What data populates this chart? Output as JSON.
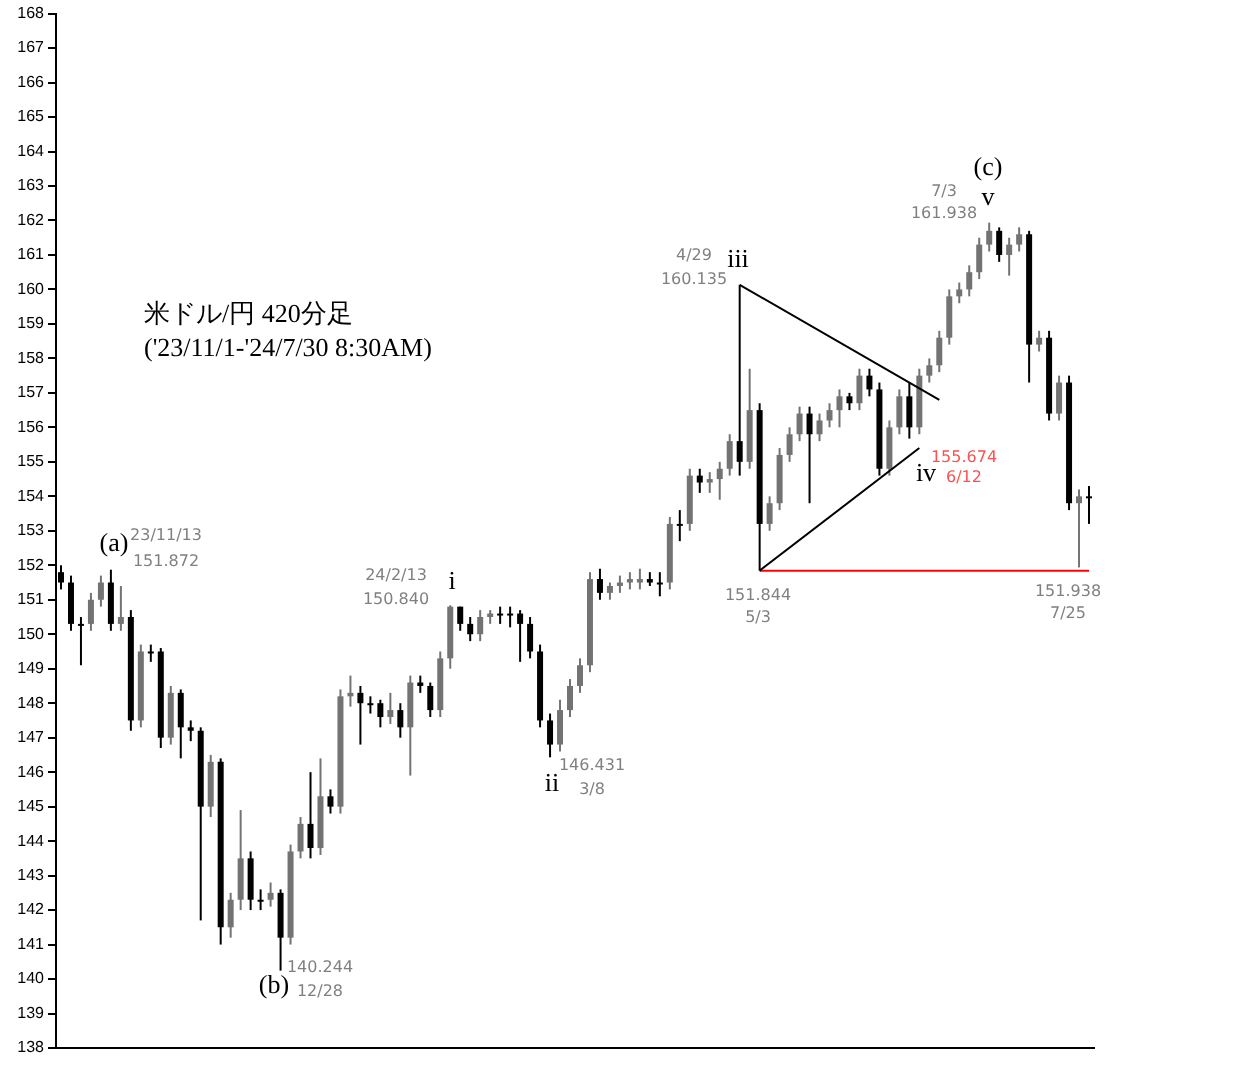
{
  "chart_data": {
    "type": "candlestick",
    "title": "米ドル/円 420分足",
    "subtitle": "('23/11/1-'24/7/30 8:30AM)",
    "colors": [
      "#000000",
      "#000000",
      "#000000",
      "#737373",
      "#737373",
      "#000000",
      "#737373",
      "#000000",
      "#737373",
      "#000000",
      "#000000",
      "#737373",
      "#000000",
      "#000000",
      "#000000",
      "#737373",
      "#000000",
      "#737373",
      "#737373",
      "#000000",
      "#000000",
      "#737373",
      "#000000",
      "#737373",
      "#737373",
      "#000000",
      "#737373",
      "#000000",
      "#737373",
      "#737373",
      "#000000",
      "#000000",
      "#000000",
      "#737373",
      "#000000",
      "#737373",
      "#000000",
      "#000000",
      "#737373",
      "#737373",
      "#000000",
      "#000000",
      "#737373",
      "#737373",
      "#000000",
      "#000000",
      "#000000",
      "#000000",
      "#000000",
      "#000000",
      "#737373",
      "#737373",
      "#737373",
      "#737373",
      "#000000",
      "#737373",
      "#737373",
      "#737373",
      "#737373",
      "#000000",
      "#000000",
      "#737373",
      "#000000",
      "#737373",
      "#000000",
      "#737373",
      "#737373",
      "#737373",
      "#000000",
      "#737373",
      "#000000",
      "#737373",
      "#737373",
      "#737373",
      "#737373",
      "#000000",
      "#737373",
      "#737373",
      "#737373",
      "#000000",
      "#737373",
      "#000000",
      "#000000",
      "#737373",
      "#737373",
      "#000000",
      "#737373",
      "#737373",
      "#737373",
      "#737373",
      "#737373",
      "#737373",
      "#737373",
      "#737373",
      "#000000",
      "#737373",
      "#737373",
      "#000000",
      "#737373",
      "#000000",
      "#737373",
      "#000000",
      "#737373",
      "#000000"
    ],
    "categories": [
      null,
      null,
      null,
      null,
      null,
      null,
      null,
      null,
      null,
      null,
      null,
      null,
      null,
      null,
      null,
      null,
      null,
      null,
      null,
      null,
      null,
      null,
      null,
      null,
      null,
      null,
      null,
      null,
      null,
      null,
      null,
      null,
      null,
      null,
      null,
      null,
      null,
      null,
      null,
      null,
      null,
      null,
      null,
      null,
      null,
      null,
      null,
      null,
      null,
      null,
      null,
      null,
      null,
      null,
      null,
      null,
      null,
      null,
      null,
      null,
      null,
      null,
      null,
      null,
      null,
      null,
      null,
      null,
      null,
      null,
      null,
      null,
      null,
      null,
      null,
      null,
      null,
      null,
      null,
      null,
      null,
      null,
      null,
      null,
      null,
      null,
      null,
      null,
      null,
      null,
      null,
      null,
      null,
      null,
      null,
      null,
      null,
      null,
      null,
      null,
      null,
      null,
      null,
      null
    ],
    "ohlc": [
      [
        151.8,
        152.0,
        151.3,
        151.5
      ],
      [
        151.5,
        151.7,
        150.1,
        150.3
      ],
      [
        150.3,
        150.5,
        149.1,
        150.3
      ],
      [
        150.3,
        151.2,
        150.1,
        151.0
      ],
      [
        151.0,
        151.7,
        150.8,
        151.5
      ],
      [
        151.5,
        151.872,
        150.1,
        150.3
      ],
      [
        150.3,
        151.4,
        150.1,
        150.5
      ],
      [
        150.5,
        150.7,
        147.2,
        147.5
      ],
      [
        147.5,
        149.7,
        147.3,
        149.5
      ],
      [
        149.5,
        149.7,
        149.2,
        149.5
      ],
      [
        149.5,
        149.6,
        146.7,
        147.0
      ],
      [
        147.0,
        148.5,
        146.8,
        148.3
      ],
      [
        148.3,
        148.4,
        146.4,
        147.3
      ],
      [
        147.3,
        147.5,
        146.9,
        147.2
      ],
      [
        147.2,
        147.3,
        141.7,
        145.0
      ],
      [
        145.0,
        146.5,
        144.7,
        146.3
      ],
      [
        146.3,
        146.4,
        141.0,
        141.5
      ],
      [
        141.5,
        142.5,
        141.2,
        142.3
      ],
      [
        142.3,
        144.9,
        142.0,
        143.5
      ],
      [
        143.5,
        143.7,
        142.0,
        142.3
      ],
      [
        142.3,
        142.6,
        142.0,
        142.3
      ],
      [
        142.3,
        142.8,
        142.1,
        142.5
      ],
      [
        142.5,
        142.6,
        140.244,
        141.2
      ],
      [
        141.2,
        143.9,
        141.0,
        143.7
      ],
      [
        143.7,
        144.7,
        143.5,
        144.5
      ],
      [
        144.5,
        146.0,
        143.5,
        143.8
      ],
      [
        143.8,
        146.4,
        143.6,
        145.3
      ],
      [
        145.3,
        145.5,
        144.8,
        145.0
      ],
      [
        145.0,
        148.4,
        144.8,
        148.2
      ],
      [
        148.2,
        148.8,
        147.9,
        148.3
      ],
      [
        148.3,
        148.5,
        146.8,
        148.0
      ],
      [
        148.0,
        148.2,
        147.7,
        148.0
      ],
      [
        148.0,
        148.1,
        147.3,
        147.6
      ],
      [
        147.6,
        148.3,
        147.4,
        147.8
      ],
      [
        147.8,
        148.0,
        147.0,
        147.3
      ],
      [
        147.3,
        148.8,
        145.9,
        148.6
      ],
      [
        148.6,
        148.8,
        148.3,
        148.5
      ],
      [
        148.5,
        148.6,
        147.6,
        147.8
      ],
      [
        147.8,
        149.5,
        147.6,
        149.3
      ],
      [
        149.3,
        150.84,
        149.0,
        150.8
      ],
      [
        150.8,
        150.8,
        150.1,
        150.3
      ],
      [
        150.3,
        150.5,
        149.8,
        150.0
      ],
      [
        150.0,
        150.7,
        149.8,
        150.5
      ],
      [
        150.5,
        150.7,
        150.3,
        150.6
      ],
      [
        150.6,
        150.8,
        150.3,
        150.6
      ],
      [
        150.6,
        150.8,
        150.2,
        150.6
      ],
      [
        150.6,
        150.7,
        149.2,
        150.3
      ],
      [
        150.3,
        150.5,
        149.3,
        149.5
      ],
      [
        149.5,
        149.7,
        147.3,
        147.5
      ],
      [
        147.5,
        147.7,
        146.431,
        146.8
      ],
      [
        146.8,
        148.1,
        146.6,
        147.8
      ],
      [
        147.8,
        148.7,
        147.6,
        148.5
      ],
      [
        148.5,
        149.3,
        148.3,
        149.1
      ],
      [
        149.1,
        151.8,
        148.9,
        151.6
      ],
      [
        151.6,
        151.9,
        151.0,
        151.2
      ],
      [
        151.2,
        151.5,
        151.0,
        151.4
      ],
      [
        151.4,
        151.7,
        151.2,
        151.5
      ],
      [
        151.5,
        151.8,
        151.3,
        151.6
      ],
      [
        151.5,
        151.9,
        151.3,
        151.6
      ],
      [
        151.6,
        151.8,
        151.4,
        151.5
      ],
      [
        151.5,
        151.8,
        151.1,
        151.5
      ],
      [
        151.5,
        153.4,
        151.3,
        153.2
      ],
      [
        153.2,
        153.6,
        152.7,
        153.2
      ],
      [
        153.2,
        154.8,
        153.0,
        154.6
      ],
      [
        154.6,
        154.8,
        154.1,
        154.4
      ],
      [
        154.4,
        154.7,
        154.1,
        154.5
      ],
      [
        154.5,
        155.0,
        153.9,
        154.8
      ],
      [
        154.8,
        155.8,
        154.6,
        155.6
      ],
      [
        155.6,
        160.135,
        154.6,
        155.0
      ],
      [
        155.0,
        157.7,
        154.8,
        156.5
      ],
      [
        156.5,
        156.7,
        151.844,
        153.2
      ],
      [
        153.2,
        154.0,
        153.0,
        153.8
      ],
      [
        153.8,
        155.4,
        153.6,
        155.2
      ],
      [
        155.2,
        156.0,
        155.0,
        155.8
      ],
      [
        155.8,
        156.6,
        155.6,
        156.4
      ],
      [
        156.4,
        156.6,
        153.8,
        155.8
      ],
      [
        155.8,
        156.4,
        155.6,
        156.2
      ],
      [
        156.2,
        156.7,
        156.0,
        156.5
      ],
      [
        156.5,
        157.1,
        156.0,
        156.9
      ],
      [
        156.9,
        157.0,
        156.5,
        156.7
      ],
      [
        156.7,
        157.7,
        156.5,
        157.5
      ],
      [
        157.5,
        157.7,
        156.9,
        157.1
      ],
      [
        157.1,
        157.3,
        154.6,
        154.8
      ],
      [
        154.8,
        156.2,
        154.6,
        156.0
      ],
      [
        156.0,
        157.1,
        155.8,
        156.9
      ],
      [
        156.9,
        157.3,
        155.674,
        156.0
      ],
      [
        156.0,
        157.7,
        155.8,
        157.5
      ],
      [
        157.5,
        158.0,
        157.3,
        157.8
      ],
      [
        157.8,
        158.8,
        157.6,
        158.6
      ],
      [
        158.6,
        160.0,
        158.4,
        159.8
      ],
      [
        159.8,
        160.2,
        159.6,
        160.0
      ],
      [
        160.0,
        160.7,
        159.8,
        160.5
      ],
      [
        160.5,
        161.5,
        160.3,
        161.3
      ],
      [
        161.3,
        161.938,
        161.1,
        161.7
      ],
      [
        161.7,
        161.8,
        160.8,
        161.0
      ],
      [
        161.0,
        161.5,
        160.4,
        161.3
      ],
      [
        161.3,
        161.8,
        161.1,
        161.6
      ],
      [
        161.6,
        161.7,
        157.3,
        158.4
      ],
      [
        158.4,
        158.8,
        158.2,
        158.6
      ],
      [
        158.6,
        158.8,
        156.2,
        156.4
      ],
      [
        156.4,
        157.5,
        156.2,
        157.3
      ],
      [
        157.3,
        157.5,
        153.6,
        153.8
      ],
      [
        153.8,
        154.2,
        151.938,
        154.0
      ],
      [
        154.0,
        154.3,
        153.2,
        154.0
      ]
    ],
    "series": [
      {
        "type": "line",
        "values": [
          null,
          null,
          null,
          null,
          null,
          null,
          null,
          null,
          null,
          null,
          null,
          null,
          null,
          null,
          null,
          null,
          null,
          null,
          null,
          null,
          null,
          null,
          null,
          null,
          null,
          null,
          null,
          null,
          null,
          null,
          null,
          null,
          null,
          null,
          null,
          null,
          null,
          null,
          null,
          null,
          null,
          null,
          null,
          null,
          null,
          null,
          null,
          null,
          null,
          null,
          null,
          null,
          null,
          null,
          null,
          null,
          null,
          null,
          null,
          null,
          null,
          null,
          null,
          null,
          null,
          null,
          null,
          null,
          160.135,
          null,
          null,
          null,
          null,
          null,
          null,
          null,
          null,
          null,
          null,
          null,
          null,
          null,
          null,
          null,
          null,
          null,
          null,
          null,
          156.8,
          null,
          null,
          null,
          null,
          null,
          null,
          null,
          null,
          null,
          null,
          null,
          null,
          null,
          null,
          null
        ],
        "color": "#000000"
      },
      {
        "type": "line",
        "values": [
          null,
          null,
          null,
          null,
          null,
          null,
          null,
          null,
          null,
          null,
          null,
          null,
          null,
          null,
          null,
          null,
          null,
          null,
          null,
          null,
          null,
          null,
          null,
          null,
          null,
          null,
          null,
          null,
          null,
          null,
          null,
          null,
          null,
          null,
          null,
          null,
          null,
          null,
          null,
          null,
          null,
          null,
          null,
          null,
          null,
          null,
          null,
          null,
          null,
          null,
          null,
          null,
          null,
          null,
          null,
          null,
          null,
          null,
          null,
          null,
          null,
          null,
          null,
          null,
          null,
          null,
          null,
          null,
          null,
          null,
          151.844,
          null,
          null,
          null,
          null,
          null,
          null,
          null,
          null,
          null,
          null,
          null,
          null,
          null,
          null,
          null,
          155.4,
          null,
          null,
          null,
          null,
          null,
          null,
          null,
          null,
          null,
          null,
          null,
          null,
          null,
          null,
          null,
          null,
          null
        ],
        "color": "#000000"
      },
      {
        "type": "line",
        "values": [
          null,
          null,
          null,
          null,
          null,
          null,
          null,
          null,
          null,
          null,
          null,
          null,
          null,
          null,
          null,
          null,
          null,
          null,
          null,
          null,
          null,
          null,
          null,
          null,
          null,
          null,
          null,
          null,
          null,
          null,
          null,
          null,
          null,
          null,
          null,
          null,
          null,
          null,
          null,
          null,
          null,
          null,
          null,
          null,
          null,
          null,
          null,
          null,
          null,
          null,
          null,
          null,
          null,
          null,
          null,
          null,
          null,
          null,
          null,
          null,
          null,
          null,
          null,
          null,
          null,
          null,
          null,
          null,
          null,
          null,
          151.844,
          null,
          null,
          null,
          null,
          null,
          null,
          null,
          null,
          null,
          null,
          null,
          null,
          null,
          null,
          null,
          null,
          null,
          null,
          null,
          null,
          null,
          null,
          null,
          null,
          null,
          null,
          null,
          null,
          null,
          null,
          null,
          null,
          151.844
        ],
        "color": "#ff0000"
      }
    ],
    "ylim": [
      138,
      168
    ],
    "yticks": [
      138,
      139,
      140,
      141,
      142,
      143,
      144,
      145,
      146,
      147,
      148,
      149,
      150,
      151,
      152,
      153,
      154,
      155,
      156,
      157,
      158,
      159,
      160,
      161,
      162,
      163,
      164,
      165,
      166,
      167,
      168
    ],
    "tick_labels": "y",
    "grid": false,
    "legend": false,
    "annotations": [
      "(a)",
      "23/11/13",
      "151.872",
      "(b)",
      "140.244",
      "12/28",
      "24/2/13",
      "150.840",
      "i",
      "ii",
      "146.431",
      "3/8",
      "4/29",
      "160.135",
      "iii",
      "151.844",
      "5/3",
      "iv",
      "155.674",
      "6/12",
      "(c)",
      "7/3",
      "161.938",
      "v",
      "151.938",
      "7/25"
    ]
  }
}
